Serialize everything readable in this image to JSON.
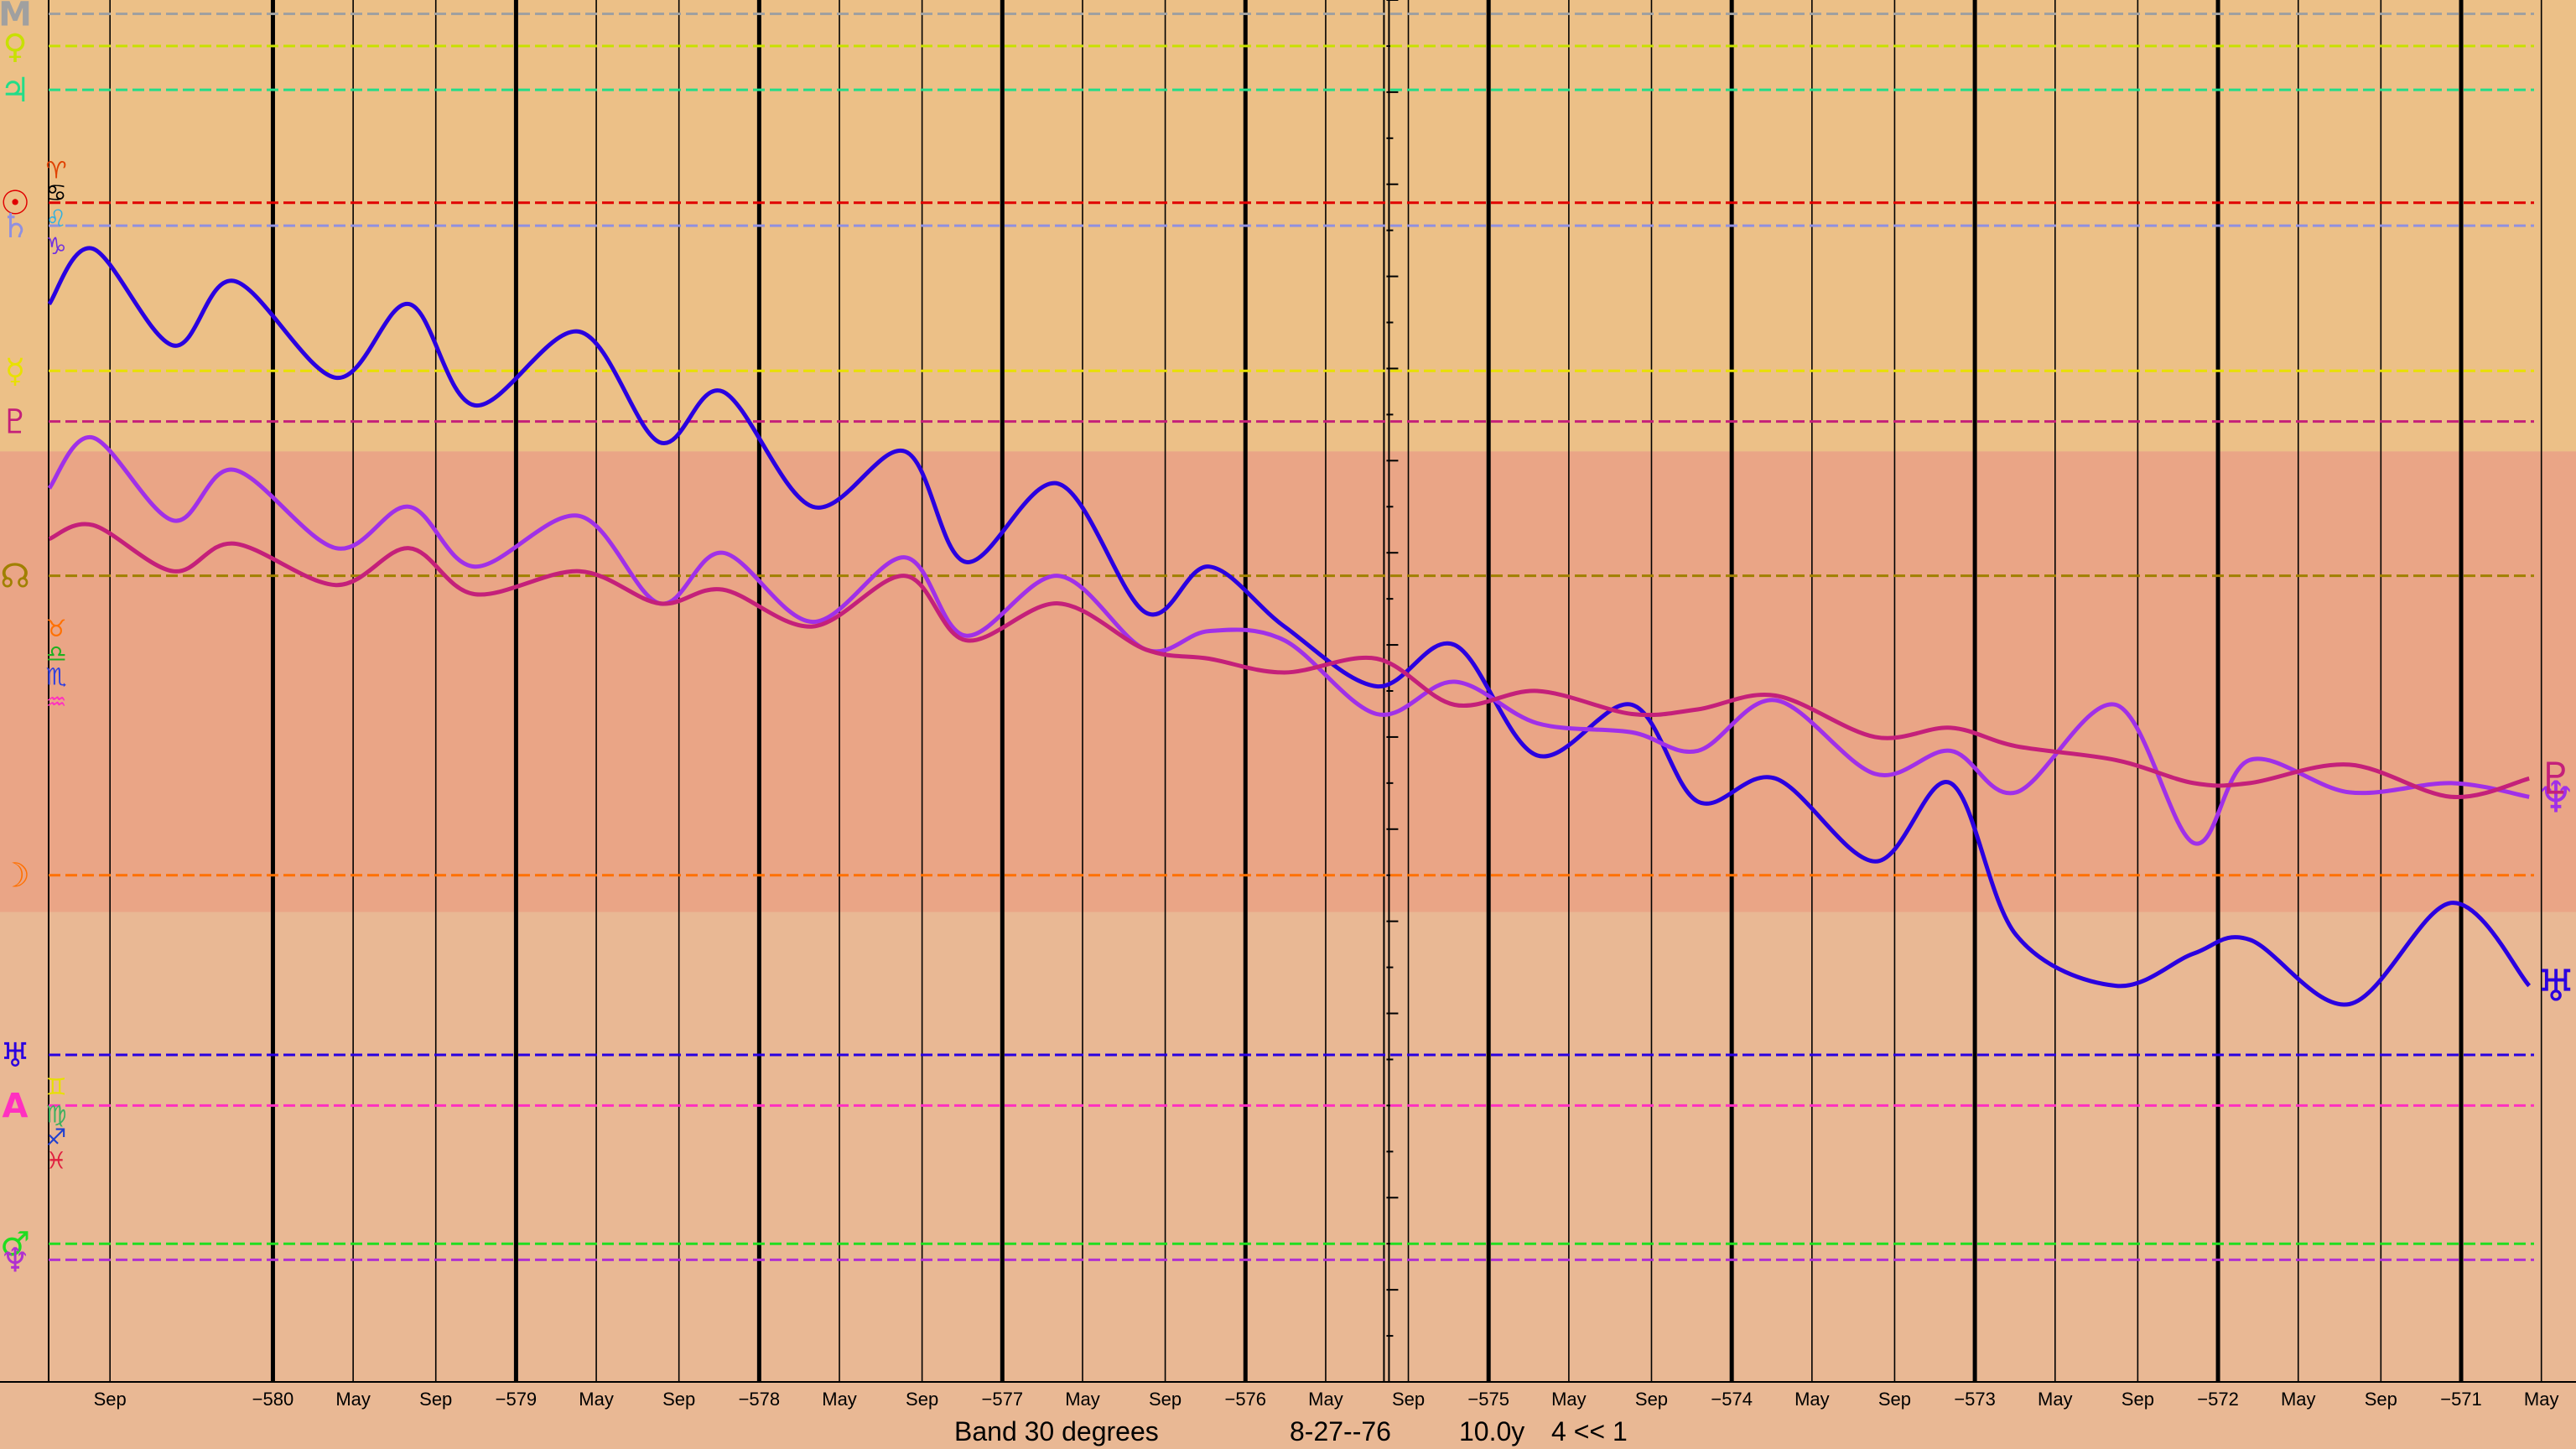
{
  "status": {
    "band": "Band 30 degrees",
    "date": "8-27--76",
    "span": "10.0y",
    "rate": "4 << 1"
  },
  "colors": {
    "background": "#e9b894",
    "band_upper": "#ecc087",
    "band_middle": "#eaa586",
    "band_lower": "#e9b894",
    "uranus": "#2a00e0",
    "neptune": "#a030e8",
    "pluto": "#c4207a"
  },
  "chart_data": {
    "type": "line",
    "title": "",
    "xlabel": "",
    "ylabel": "",
    "x_axis": {
      "ticks": [
        {
          "label": "Sep",
          "year": -580.67,
          "major": false
        },
        {
          "label": "−580",
          "year": -580.0,
          "major": true
        },
        {
          "label": "May",
          "year": -579.67,
          "major": false
        },
        {
          "label": "Sep",
          "year": -579.33,
          "major": false
        },
        {
          "label": "−579",
          "year": -579.0,
          "major": true
        },
        {
          "label": "May",
          "year": -578.67,
          "major": false
        },
        {
          "label": "Sep",
          "year": -578.33,
          "major": false
        },
        {
          "label": "−578",
          "year": -578.0,
          "major": true
        },
        {
          "label": "May",
          "year": -577.67,
          "major": false
        },
        {
          "label": "Sep",
          "year": -577.33,
          "major": false
        },
        {
          "label": "−577",
          "year": -577.0,
          "major": true
        },
        {
          "label": "May",
          "year": -576.67,
          "major": false
        },
        {
          "label": "Sep",
          "year": -576.33,
          "major": false
        },
        {
          "label": "−576",
          "year": -576.0,
          "major": true
        },
        {
          "label": "May",
          "year": -575.67,
          "major": false
        },
        {
          "label": "Sep",
          "year": -575.33,
          "major": false
        },
        {
          "label": "−575",
          "year": -575.0,
          "major": true
        },
        {
          "label": "May",
          "year": -574.67,
          "major": false
        },
        {
          "label": "Sep",
          "year": -574.33,
          "major": false
        },
        {
          "label": "−574",
          "year": -574.0,
          "major": true
        },
        {
          "label": "May",
          "year": -573.67,
          "major": false
        },
        {
          "label": "Sep",
          "year": -573.33,
          "major": false
        },
        {
          "label": "−573",
          "year": -573.0,
          "major": true
        },
        {
          "label": "May",
          "year": -572.67,
          "major": false
        },
        {
          "label": "Sep",
          "year": -572.33,
          "major": false
        },
        {
          "label": "−572",
          "year": -572.0,
          "major": true
        },
        {
          "label": "May",
          "year": -571.67,
          "major": false
        },
        {
          "label": "Sep",
          "year": -571.33,
          "major": false
        },
        {
          "label": "−571",
          "year": -571.0,
          "major": true
        },
        {
          "label": "May",
          "year": -570.67,
          "major": false
        }
      ],
      "xlim": [
        -580.95,
        -570.7
      ]
    },
    "ylim": [
      0,
      30
    ],
    "bands": [
      {
        "from": 0,
        "to": 9.8,
        "color": "#ecc087"
      },
      {
        "from": 9.8,
        "to": 19.8,
        "color": "#eaa586"
      },
      {
        "from": 19.8,
        "to": 30,
        "color": "#e9b894"
      }
    ],
    "reference_lines": [
      {
        "glyph": "M",
        "color": "#a0a0a0",
        "value": 0.3
      },
      {
        "glyph": "♀",
        "color": "#c8e000",
        "value": 1.0
      },
      {
        "glyph": "♃",
        "color": "#22dd88",
        "value": 1.95
      },
      {
        "glyph": "☉",
        "color": "#e00000",
        "value": 4.4
      },
      {
        "glyph": "♄",
        "color": "#9090e0",
        "value": 4.9
      },
      {
        "glyph": "☿",
        "color": "#e8e000",
        "value": 8.05
      },
      {
        "glyph": "♇",
        "color": "#c4207a",
        "value": 9.15
      },
      {
        "glyph": "☊",
        "color": "#a08000",
        "value": 12.5
      },
      {
        "glyph": "☽",
        "color": "#ff7000",
        "value": 19.0
      },
      {
        "glyph": "♅",
        "color": "#2a00e0",
        "value": 22.9
      },
      {
        "glyph": "A",
        "color": "#ff30c0",
        "value": 24.0
      },
      {
        "glyph": "♂",
        "color": "#20dd20",
        "value": 27.0
      },
      {
        "glyph": "♆",
        "color": "#b030d0",
        "value": 27.35
      }
    ],
    "sign_markers": [
      {
        "glyph": "♈",
        "color": "#e04000",
        "value": 3.7
      },
      {
        "glyph": "♋",
        "color": "#000000",
        "value": 4.2
      },
      {
        "glyph": "♌",
        "color": "#30b0e0",
        "value": 4.75
      },
      {
        "glyph": "♑",
        "color": "#7030e0",
        "value": 5.35
      },
      {
        "glyph": "♉",
        "color": "#ff7000",
        "value": 13.65
      },
      {
        "glyph": "♎",
        "color": "#20b020",
        "value": 14.2
      },
      {
        "glyph": "♏",
        "color": "#3040e0",
        "value": 14.7
      },
      {
        "glyph": "♒",
        "color": "#ff30c0",
        "value": 15.25
      },
      {
        "glyph": "♊",
        "color": "#e8e000",
        "value": 23.6
      },
      {
        "glyph": "♍",
        "color": "#40b060",
        "value": 24.2
      },
      {
        "glyph": "♐",
        "color": "#2040d0",
        "value": 24.7
      },
      {
        "glyph": "♓",
        "color": "#e02040",
        "value": 25.2
      }
    ],
    "series": [
      {
        "glyph": "♅",
        "color": "#2a00e0",
        "x": [
          -580.92,
          -580.74,
          -580.41,
          -580.16,
          -579.74,
          -579.44,
          -579.17,
          -578.74,
          -578.41,
          -578.15,
          -577.78,
          -577.4,
          -577.15,
          -576.77,
          -576.41,
          -576.15,
          -575.84,
          -575.46,
          -575.14,
          -574.8,
          -574.41,
          -574.14,
          -573.82,
          -573.41,
          -573.1,
          -572.83,
          -572.42,
          -572.1,
          -571.87,
          -571.46,
          -571.04,
          -570.72
        ],
        "values": [
          6.6,
          5.4,
          7.5,
          6.1,
          8.2,
          6.6,
          8.8,
          7.2,
          9.6,
          8.5,
          11.0,
          9.8,
          12.2,
          10.5,
          13.3,
          12.3,
          13.6,
          14.9,
          14.0,
          16.4,
          15.3,
          17.4,
          16.9,
          18.7,
          17.0,
          20.3,
          21.4,
          20.7,
          20.4,
          21.8,
          19.6,
          21.4
        ]
      },
      {
        "glyph": "♆",
        "color": "#a030e8",
        "x": [
          -580.92,
          -580.74,
          -580.41,
          -580.16,
          -579.74,
          -579.44,
          -579.17,
          -578.74,
          -578.41,
          -578.15,
          -577.78,
          -577.4,
          -577.15,
          -576.77,
          -576.41,
          -576.15,
          -575.84,
          -575.46,
          -575.14,
          -574.8,
          -574.41,
          -574.14,
          -573.82,
          -573.41,
          -573.1,
          -572.83,
          -572.42,
          -572.1,
          -571.87,
          -571.46,
          -571.04,
          -570.72
        ],
        "values": [
          10.6,
          9.5,
          11.3,
          10.2,
          11.9,
          11.0,
          12.3,
          11.2,
          13.1,
          12.0,
          13.5,
          12.1,
          13.8,
          12.5,
          14.1,
          13.7,
          13.9,
          15.5,
          14.8,
          15.7,
          15.9,
          16.3,
          15.2,
          16.8,
          16.3,
          17.2,
          15.3,
          18.3,
          16.5,
          17.2,
          17.0,
          17.3
        ]
      },
      {
        "glyph": "♇",
        "color": "#c4207a",
        "x": [
          -580.92,
          -580.74,
          -580.41,
          -580.16,
          -579.74,
          -579.44,
          -579.17,
          -578.74,
          -578.41,
          -578.15,
          -577.78,
          -577.4,
          -577.15,
          -576.77,
          -576.41,
          -576.15,
          -575.84,
          -575.46,
          -575.14,
          -574.8,
          -574.41,
          -574.14,
          -573.82,
          -573.41,
          -573.1,
          -572.83,
          -572.42,
          -572.1,
          -571.87,
          -571.46,
          -571.04,
          -570.72
        ],
        "values": [
          11.7,
          11.4,
          12.4,
          11.8,
          12.7,
          11.9,
          12.9,
          12.4,
          13.1,
          12.8,
          13.6,
          12.5,
          13.9,
          13.1,
          14.1,
          14.3,
          14.6,
          14.3,
          15.3,
          15.0,
          15.5,
          15.4,
          15.1,
          16.0,
          15.8,
          16.2,
          16.5,
          17.0,
          17.0,
          16.6,
          17.3,
          16.9
        ]
      }
    ],
    "legend": "right-end glyphs",
    "grid": true
  }
}
